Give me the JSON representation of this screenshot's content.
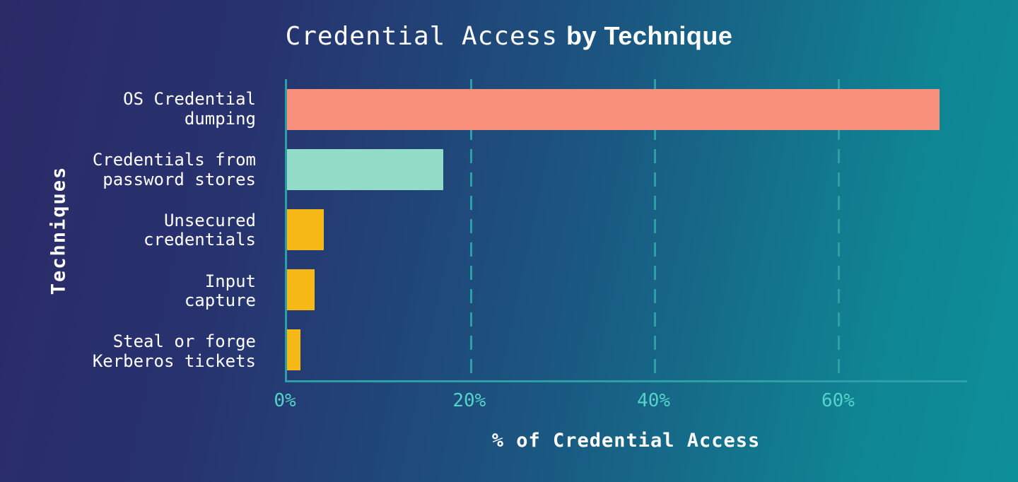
{
  "title": {
    "main": "Credential Access",
    "emphasis": "by Technique"
  },
  "theme": {
    "background_from": "#2B2A67",
    "background_to": "#0D8F99",
    "axis_color": "#2F9FA6",
    "tick_color": "#54D3C8",
    "text_color": "#FFFFFF",
    "bar_color_primary": "#F9907B",
    "bar_color_secondary": "#93DCC8",
    "bar_color_tertiary": "#F7B916"
  },
  "chart_data": {
    "type": "bar",
    "orientation": "horizontal",
    "title": "Credential Access by Technique",
    "categories": [
      "OS Credential\ndumping",
      "Credentials from\npassword stores",
      "Unsecured\ncredentials",
      "Input\ncapture",
      "Steal or forge\nKerberos tickets"
    ],
    "values": [
      71,
      17,
      4,
      3,
      1.5
    ],
    "unit": "%",
    "colors": [
      "#F9907B",
      "#93DCC8",
      "#F7B916",
      "#F7B916",
      "#F7B916"
    ],
    "xlabel": "% of Credential Access",
    "ylabel": "Techniques",
    "xlim": [
      0,
      74
    ],
    "xticks": [
      0,
      20,
      40,
      60
    ],
    "xtick_labels": [
      "0%",
      "20%",
      "40%",
      "60%"
    ],
    "gridlines": [
      20,
      40,
      60
    ],
    "grid_style": "dashed-vertical",
    "legend": false
  }
}
